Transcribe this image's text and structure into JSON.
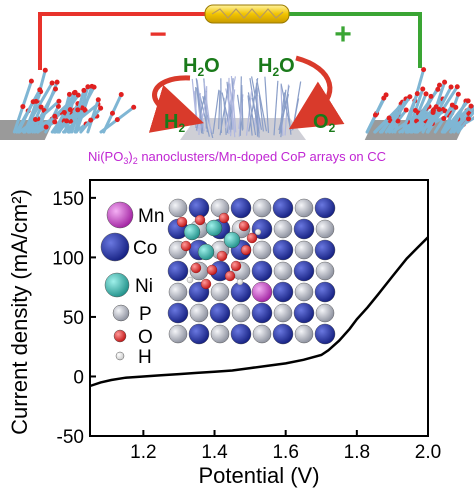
{
  "scheme": {
    "minus_sign": "−",
    "plus_sign": "+",
    "labels": {
      "h2o_left": "H2O",
      "h2o_right": "H2O",
      "h2": "H2",
      "o2": "O2"
    },
    "caption": "Ni(PO3)2 nanoclusters/Mn-doped CoP arrays on CC",
    "colors": {
      "wire_red": "#e8322b",
      "wire_green": "#3aa534",
      "battery": "#f2c400",
      "caption": "#c026d3",
      "gas_text": "#1a7a1a",
      "arrow": "#d93a2b",
      "nanowire": "#7fb6d4",
      "electrode": "#9a9a9a"
    }
  },
  "legend": {
    "items": [
      {
        "label": "Mn",
        "color": "#c040c0",
        "icon": "mn-atom-icon"
      },
      {
        "label": "Co",
        "color": "#1f2fa8",
        "icon": "co-atom-icon"
      },
      {
        "label": "Ni",
        "color": "#35b8b0",
        "icon": "ni-atom-icon"
      },
      {
        "label": "P",
        "color": "#b8bcc8",
        "icon": "p-atom-icon"
      },
      {
        "label": "O",
        "color": "#e02020",
        "icon": "o-atom-icon"
      },
      {
        "label": "H",
        "color": "#f2f2f2",
        "icon": "h-atom-icon"
      }
    ]
  },
  "chart_data": {
    "type": "line",
    "xlabel": "Potential (V)",
    "ylabel": "Current density (mA/cm²)",
    "xlim": [
      1.05,
      2.0
    ],
    "ylim": [
      -50,
      165
    ],
    "xticks": [
      "1.2",
      "1.4",
      "1.6",
      "1.8",
      "2.0"
    ],
    "xtick_values": [
      1.2,
      1.4,
      1.6,
      1.8,
      2.0
    ],
    "yticks": [
      "-50",
      "0",
      "50",
      "100",
      "150"
    ],
    "ytick_values": [
      -50,
      0,
      50,
      100,
      150
    ],
    "grid": false,
    "series": [
      {
        "color": "#000000",
        "x": [
          1.05,
          1.08,
          1.11,
          1.15,
          1.2,
          1.25,
          1.3,
          1.35,
          1.4,
          1.45,
          1.5,
          1.55,
          1.6,
          1.65,
          1.7,
          1.72,
          1.75,
          1.78,
          1.8,
          1.83,
          1.86,
          1.9,
          1.94,
          1.97,
          2.0
        ],
        "y": [
          -8,
          -5,
          -3,
          -1,
          0,
          1,
          2,
          3,
          4,
          5,
          7,
          9,
          11,
          14,
          18,
          22,
          30,
          40,
          48,
          58,
          69,
          84,
          99,
          108,
          117
        ]
      }
    ]
  }
}
